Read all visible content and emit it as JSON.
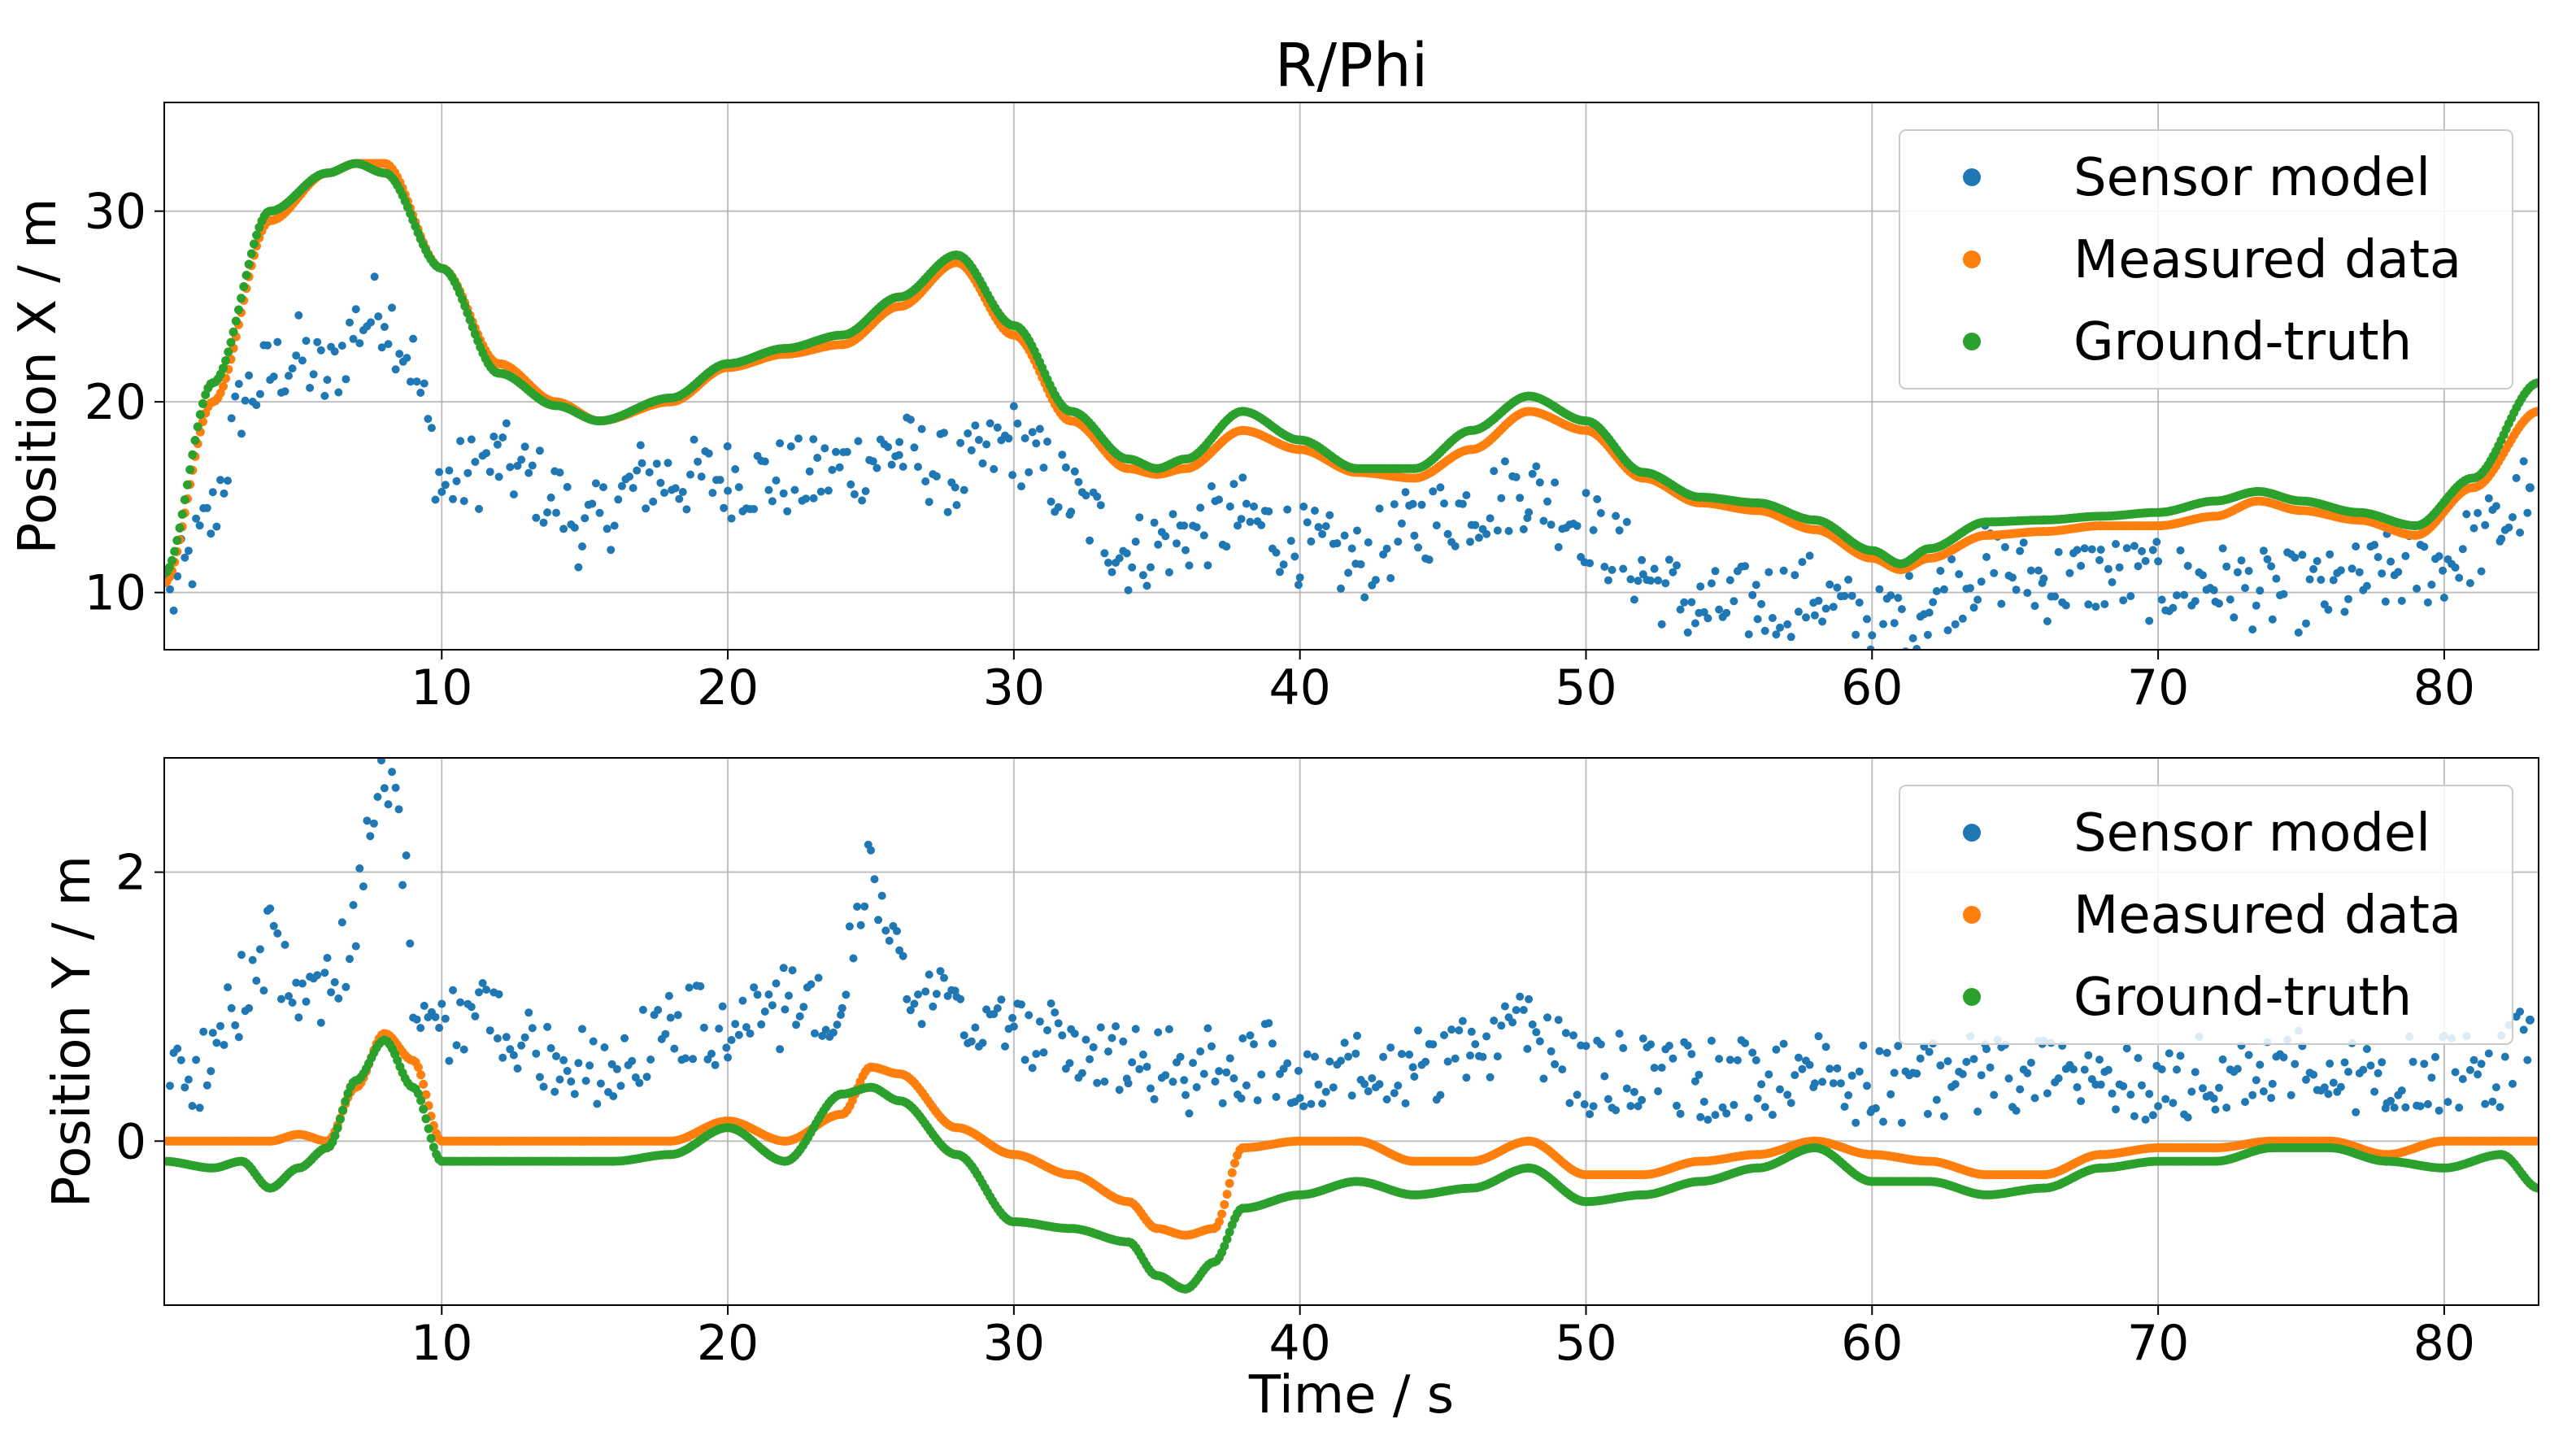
{
  "chart_data": [
    {
      "type": "scatter",
      "title": "R/Phi",
      "xlabel": "",
      "ylabel": "Position X / m",
      "xlim": [
        0.3,
        83.3
      ],
      "ylim": [
        7,
        35.7
      ],
      "grid": true,
      "legend": "top-right",
      "xticks": [
        10,
        20,
        30,
        40,
        50,
        60,
        70,
        80
      ],
      "yticks": [
        10,
        20,
        30
      ],
      "xtick_labels": [
        "10",
        "20",
        "30",
        "40",
        "50",
        "60",
        "70",
        "80"
      ],
      "ytick_labels": [
        "10",
        "20",
        "30"
      ],
      "series": [
        {
          "name": "Sensor model",
          "color": "#1f77b4",
          "x": [
            0.5,
            2,
            3,
            4,
            5,
            6,
            7,
            8,
            9,
            10,
            12,
            14,
            15,
            17,
            20,
            23,
            26,
            28,
            30,
            32,
            34,
            36,
            38,
            40,
            42,
            44,
            46,
            48,
            50,
            52,
            54,
            56,
            58,
            60,
            62,
            64,
            66,
            68,
            70,
            72,
            74,
            76,
            78,
            80,
            82,
            83
          ],
          "values": [
            9.5,
            14,
            20,
            21.5,
            22.5,
            21,
            24,
            25,
            22,
            15.5,
            17,
            15,
            13,
            16,
            16,
            16,
            17.5,
            16,
            18,
            15,
            12,
            13,
            14,
            12.5,
            11.5,
            13.5,
            14.5,
            15.5,
            13.5,
            11,
            9,
            9.5,
            10,
            8,
            9.5,
            11.5,
            10.5,
            11,
            10.5,
            10.5,
            10,
            10,
            11,
            11.5,
            13.5,
            15.5
          ]
        },
        {
          "name": "Measured data",
          "color": "#ff7f0e",
          "x": [
            0.3,
            2,
            4,
            6,
            7,
            8,
            10,
            12,
            14,
            15.5,
            18,
            20,
            22,
            24,
            26,
            28,
            30,
            32,
            34,
            35,
            36,
            38,
            40,
            42,
            44,
            46,
            48,
            50,
            52,
            54,
            56,
            58,
            60,
            61,
            62,
            64,
            66,
            68,
            70,
            72,
            73.5,
            75,
            77,
            79,
            81,
            83.3
          ],
          "values": [
            10.5,
            20,
            29.5,
            32,
            32.5,
            32.5,
            27,
            22,
            20,
            19,
            20,
            21.8,
            22.5,
            23,
            25,
            27.3,
            23.5,
            19,
            16.5,
            16.2,
            16.5,
            18.5,
            17.5,
            16.3,
            16,
            17.5,
            19.5,
            18.5,
            16,
            14.7,
            14.3,
            13.3,
            11.8,
            11.2,
            11.8,
            13,
            13.2,
            13.5,
            13.5,
            14,
            14.8,
            14.3,
            13.8,
            13,
            15.5,
            19.5
          ]
        },
        {
          "name": "Ground-truth",
          "color": "#2ca02c",
          "x": [
            0.3,
            2,
            4,
            6,
            7,
            8,
            10,
            12,
            14,
            15.5,
            18,
            20,
            22,
            24,
            26,
            28,
            30,
            32,
            34,
            35,
            36,
            38,
            40,
            42,
            44,
            46,
            48,
            50,
            52,
            54,
            56,
            58,
            60,
            61,
            62,
            64,
            66,
            68,
            70,
            72,
            73.5,
            75,
            77,
            79,
            81,
            83.3
          ],
          "values": [
            11,
            21,
            30,
            32,
            32.5,
            32,
            27,
            21.5,
            19.8,
            19,
            20.2,
            22,
            22.8,
            23.5,
            25.5,
            27.7,
            24,
            19.5,
            17,
            16.5,
            17,
            19.5,
            18,
            16.5,
            16.5,
            18.5,
            20.3,
            19,
            16.3,
            15,
            14.7,
            13.8,
            12.2,
            11.5,
            12.3,
            13.7,
            13.8,
            14,
            14.2,
            14.8,
            15.3,
            14.8,
            14.2,
            13.5,
            16,
            21
          ]
        }
      ]
    },
    {
      "type": "scatter",
      "title": "",
      "xlabel": "Time / s",
      "ylabel": "Position Y / m",
      "xlim": [
        0.3,
        83.3
      ],
      "ylim": [
        -1.22,
        2.85
      ],
      "grid": true,
      "legend": "top-right",
      "xticks": [
        10,
        20,
        30,
        40,
        50,
        60,
        70,
        80
      ],
      "yticks": [
        0,
        2
      ],
      "xtick_labels": [
        "10",
        "20",
        "30",
        "40",
        "50",
        "60",
        "70",
        "80"
      ],
      "ytick_labels": [
        "0",
        "2"
      ],
      "series": [
        {
          "name": "Sensor model",
          "color": "#1f77b4",
          "x": [
            0.5,
            2,
            3,
            4,
            5,
            6,
            7,
            7.5,
            8,
            8.5,
            9,
            10,
            12,
            14,
            16,
            18,
            20,
            22,
            24,
            25,
            26,
            28,
            30,
            32,
            34,
            36,
            38,
            40,
            42,
            44,
            46,
            48,
            50,
            52,
            54,
            56,
            58,
            60,
            62,
            64,
            66,
            68,
            70,
            72,
            74,
            76,
            78,
            80,
            82,
            83
          ],
          "values": [
            0.4,
            0.6,
            1.1,
            1.5,
            1,
            1.2,
            1.5,
            2.5,
            2.8,
            2.5,
            1.2,
            0.9,
            0.9,
            0.6,
            0.5,
            0.9,
            0.8,
            1.0,
            1.1,
            2.1,
            1.2,
            0.9,
            0.8,
            0.7,
            0.6,
            0.5,
            0.6,
            0.55,
            0.5,
            0.55,
            0.7,
            0.8,
            0.5,
            0.5,
            0.45,
            0.45,
            0.5,
            0.4,
            0.45,
            0.5,
            0.55,
            0.5,
            0.45,
            0.5,
            0.55,
            0.5,
            0.5,
            0.5,
            0.55,
            0.9
          ]
        },
        {
          "name": "Measured data",
          "color": "#ff7f0e",
          "x": [
            0.3,
            2,
            4,
            5,
            6,
            7,
            8,
            9,
            10,
            12,
            15,
            18,
            20,
            22,
            24,
            25,
            26,
            28,
            30,
            32,
            34,
            35,
            36,
            37,
            38,
            40,
            42,
            44,
            46,
            48,
            50,
            52,
            54,
            56,
            58,
            60,
            62,
            64,
            66,
            68,
            70,
            72,
            74,
            76,
            78,
            80,
            82,
            83.3
          ],
          "values": [
            0,
            0,
            0,
            0.05,
            0,
            0.4,
            0.8,
            0.6,
            0,
            0,
            0,
            0,
            0.15,
            0,
            0.2,
            0.55,
            0.5,
            0.1,
            -0.1,
            -0.25,
            -0.45,
            -0.65,
            -0.7,
            -0.65,
            -0.05,
            0,
            0,
            -0.15,
            -0.15,
            0,
            -0.25,
            -0.25,
            -0.15,
            -0.1,
            0,
            -0.1,
            -0.15,
            -0.25,
            -0.25,
            -0.1,
            -0.05,
            -0.05,
            0,
            0,
            -0.1,
            0,
            0,
            0
          ]
        },
        {
          "name": "Ground-truth",
          "color": "#2ca02c",
          "x": [
            0.3,
            2,
            3,
            4,
            5,
            6,
            7,
            8,
            9,
            10,
            12,
            14,
            16,
            18,
            20,
            22,
            24,
            25,
            26,
            28,
            30,
            32,
            34,
            35,
            36,
            37,
            38,
            40,
            42,
            44,
            46,
            48,
            50,
            52,
            54,
            56,
            58,
            60,
            62,
            64,
            66,
            68,
            70,
            72,
            74,
            76,
            78,
            80,
            82,
            83.3
          ],
          "values": [
            -0.15,
            -0.2,
            -0.15,
            -0.35,
            -0.2,
            -0.05,
            0.45,
            0.75,
            0.4,
            -0.15,
            -0.15,
            -0.15,
            -0.15,
            -0.1,
            0.1,
            -0.15,
            0.35,
            0.4,
            0.3,
            -0.1,
            -0.6,
            -0.65,
            -0.75,
            -1.0,
            -1.1,
            -0.9,
            -0.5,
            -0.4,
            -0.3,
            -0.4,
            -0.35,
            -0.2,
            -0.45,
            -0.4,
            -0.3,
            -0.2,
            -0.05,
            -0.3,
            -0.3,
            -0.4,
            -0.35,
            -0.2,
            -0.15,
            -0.15,
            -0.05,
            -0.05,
            -0.15,
            -0.2,
            -0.1,
            -0.35
          ]
        }
      ]
    }
  ]
}
